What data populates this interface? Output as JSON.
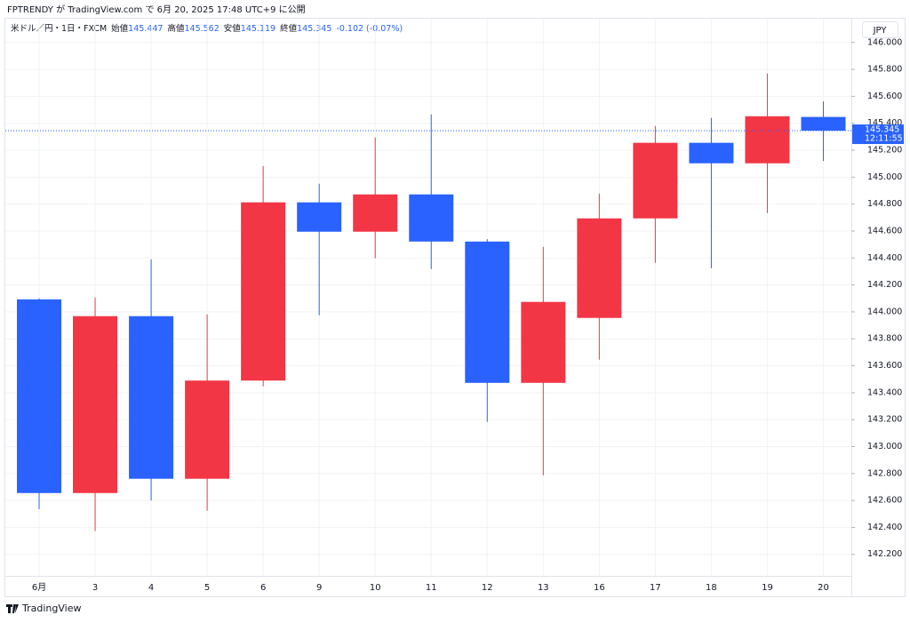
{
  "caption": "FPTRENDY が TradingView.com で 6月 20, 2025 17:48 UTC+9 に公開",
  "footer": "TradingView",
  "chart_data": {
    "type": "candlestick",
    "symbol": "米ドル／円・1日・FXCM",
    "ohlc_labels": [
      "始値",
      "高値",
      "安値",
      "終値"
    ],
    "change": "-0.102 (-0.07%)",
    "currency": "JPY",
    "countdown": "12:11:55",
    "categories": [
      "6月",
      "3",
      "4",
      "5",
      "6",
      "9",
      "10",
      "11",
      "12",
      "13",
      "16",
      "17",
      "18",
      "19",
      "20"
    ],
    "open": [
      144.093,
      142.655,
      143.968,
      142.761,
      143.49,
      144.813,
      144.595,
      144.872,
      144.522,
      143.473,
      143.955,
      144.694,
      145.255,
      145.103,
      145.447
    ],
    "high": [
      144.1,
      144.107,
      144.39,
      143.981,
      145.083,
      144.951,
      145.294,
      145.466,
      144.54,
      144.483,
      144.878,
      145.38,
      145.44,
      145.769,
      145.562
    ],
    "low": [
      142.536,
      142.372,
      142.6,
      142.523,
      143.447,
      143.975,
      144.397,
      144.318,
      143.183,
      142.787,
      143.645,
      144.364,
      144.324,
      144.733,
      145.119
    ],
    "close": [
      142.655,
      143.968,
      142.761,
      143.49,
      144.813,
      144.595,
      144.872,
      144.522,
      143.473,
      144.074,
      144.694,
      145.255,
      145.103,
      145.452,
      145.345
    ],
    "up_color": "#f23645",
    "down_color": "#2962ff",
    "ylim": [
      142.04,
      146.17
    ],
    "yticks": [
      {
        "value": 142.2,
        "label": "142.200"
      },
      {
        "value": 142.4,
        "label": "142.400"
      },
      {
        "value": 142.6,
        "label": "142.600"
      },
      {
        "value": 142.8,
        "label": "142.800"
      },
      {
        "value": 143.0,
        "label": "143.000"
      },
      {
        "value": 143.2,
        "label": "143.200"
      },
      {
        "value": 143.4,
        "label": "143.400"
      },
      {
        "value": 143.6,
        "label": "143.600"
      },
      {
        "value": 143.8,
        "label": "143.800"
      },
      {
        "value": 144.0,
        "label": "144.000"
      },
      {
        "value": 144.2,
        "label": "144.200"
      },
      {
        "value": 144.4,
        "label": "144.400"
      },
      {
        "value": 144.6,
        "label": "144.600"
      },
      {
        "value": 144.8,
        "label": "144.800"
      },
      {
        "value": 145.0,
        "label": "145.000"
      },
      {
        "value": 145.2,
        "label": "145.200"
      },
      {
        "value": 145.4,
        "label": "145.400"
      },
      {
        "value": 145.6,
        "label": "145.600"
      },
      {
        "value": 145.8,
        "label": "145.800"
      },
      {
        "value": 146.0,
        "label": "146.000"
      }
    ],
    "grid": true
  }
}
